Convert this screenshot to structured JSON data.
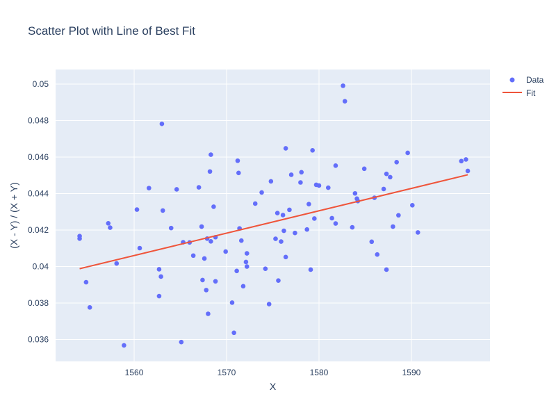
{
  "chart_data": {
    "type": "scatter",
    "title": "Scatter Plot with Line of Best Fit",
    "xlabel": "X",
    "ylabel": "(X - Y) / (X + Y)",
    "xlim": [
      1551.5,
      1598.5
    ],
    "ylim": [
      0.0348,
      0.0508
    ],
    "xticks": [
      1560,
      1570,
      1580,
      1590
    ],
    "xtick_labels": [
      "1560",
      "1570",
      "1580",
      "1590"
    ],
    "yticks": [
      0.036,
      0.038,
      0.04,
      0.042,
      0.044,
      0.046,
      0.048,
      0.05
    ],
    "ytick_labels": [
      "0.036",
      "0.038",
      "0.04",
      "0.042",
      "0.044",
      "0.046",
      "0.048",
      "0.05"
    ],
    "grid": true,
    "legend_position": "top-right",
    "series": [
      {
        "name": "Data",
        "mode": "markers",
        "color": "#636efa",
        "points": [
          [
            1554.1,
            0.04153
          ],
          [
            1554.1,
            0.04167
          ],
          [
            1554.8,
            0.03914
          ],
          [
            1555.2,
            0.03776
          ],
          [
            1557.2,
            0.04237
          ],
          [
            1557.4,
            0.04213
          ],
          [
            1558.1,
            0.04017
          ],
          [
            1558.9,
            0.03568
          ],
          [
            1560.3,
            0.04312
          ],
          [
            1560.6,
            0.04101
          ],
          [
            1561.6,
            0.0443
          ],
          [
            1562.7,
            0.03985
          ],
          [
            1562.7,
            0.03838
          ],
          [
            1562.9,
            0.03945
          ],
          [
            1563.0,
            0.04782
          ],
          [
            1563.1,
            0.04307
          ],
          [
            1564.0,
            0.04211
          ],
          [
            1564.6,
            0.04423
          ],
          [
            1565.1,
            0.03586
          ],
          [
            1565.3,
            0.04133
          ],
          [
            1566.0,
            0.04132
          ],
          [
            1566.4,
            0.0406
          ],
          [
            1567.0,
            0.04434
          ],
          [
            1567.3,
            0.04219
          ],
          [
            1567.4,
            0.03926
          ],
          [
            1567.6,
            0.04044
          ],
          [
            1567.8,
            0.03871
          ],
          [
            1567.9,
            0.04153
          ],
          [
            1568.0,
            0.03741
          ],
          [
            1568.2,
            0.04521
          ],
          [
            1568.3,
            0.04613
          ],
          [
            1568.3,
            0.04138
          ],
          [
            1568.6,
            0.04328
          ],
          [
            1568.8,
            0.03919
          ],
          [
            1568.8,
            0.04161
          ],
          [
            1569.9,
            0.04082
          ],
          [
            1570.6,
            0.03802
          ],
          [
            1570.8,
            0.03637
          ],
          [
            1571.1,
            0.03976
          ],
          [
            1571.2,
            0.0458
          ],
          [
            1571.3,
            0.04513
          ],
          [
            1571.4,
            0.04209
          ],
          [
            1571.6,
            0.04142
          ],
          [
            1571.8,
            0.03892
          ],
          [
            1572.1,
            0.04025
          ],
          [
            1572.2,
            0.04
          ],
          [
            1572.2,
            0.04072
          ],
          [
            1573.1,
            0.04345
          ],
          [
            1573.8,
            0.04406
          ],
          [
            1574.2,
            0.03988
          ],
          [
            1574.6,
            0.03794
          ],
          [
            1574.8,
            0.04467
          ],
          [
            1575.3,
            0.04152
          ],
          [
            1575.5,
            0.04293
          ],
          [
            1575.6,
            0.03923
          ],
          [
            1575.9,
            0.04137
          ],
          [
            1576.1,
            0.04282
          ],
          [
            1576.2,
            0.04196
          ],
          [
            1576.4,
            0.04648
          ],
          [
            1576.4,
            0.04052
          ],
          [
            1576.8,
            0.04311
          ],
          [
            1577.0,
            0.04503
          ],
          [
            1577.4,
            0.04184
          ],
          [
            1578.0,
            0.04461
          ],
          [
            1578.1,
            0.04517
          ],
          [
            1578.7,
            0.04203
          ],
          [
            1578.9,
            0.04342
          ],
          [
            1579.1,
            0.03983
          ],
          [
            1579.3,
            0.04637
          ],
          [
            1579.5,
            0.04263
          ],
          [
            1579.7,
            0.04448
          ],
          [
            1580.0,
            0.04444
          ],
          [
            1581.0,
            0.04432
          ],
          [
            1581.4,
            0.04265
          ],
          [
            1581.8,
            0.04236
          ],
          [
            1581.8,
            0.04553
          ],
          [
            1582.6,
            0.04991
          ],
          [
            1582.8,
            0.04906
          ],
          [
            1583.6,
            0.04215
          ],
          [
            1583.9,
            0.04401
          ],
          [
            1584.1,
            0.04372
          ],
          [
            1584.2,
            0.04359
          ],
          [
            1584.9,
            0.04536
          ],
          [
            1585.7,
            0.04136
          ],
          [
            1586.0,
            0.04377
          ],
          [
            1586.3,
            0.04066
          ],
          [
            1587.0,
            0.04425
          ],
          [
            1587.3,
            0.04508
          ],
          [
            1587.3,
            0.03983
          ],
          [
            1587.7,
            0.0449
          ],
          [
            1588.0,
            0.04219
          ],
          [
            1588.4,
            0.04572
          ],
          [
            1588.6,
            0.04281
          ],
          [
            1589.6,
            0.04623
          ],
          [
            1590.1,
            0.04336
          ],
          [
            1590.7,
            0.04187
          ],
          [
            1595.4,
            0.04578
          ],
          [
            1595.9,
            0.04587
          ],
          [
            1596.1,
            0.04524
          ]
        ]
      },
      {
        "name": "Fit",
        "mode": "lines",
        "color": "#ef553b",
        "x": [
          1554.1,
          1596.1
        ],
        "y": [
          0.03988,
          0.04503
        ]
      }
    ]
  }
}
